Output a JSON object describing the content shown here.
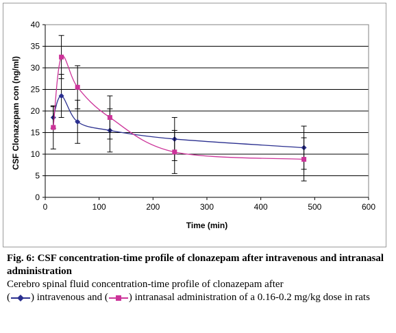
{
  "chart_data": {
    "type": "line",
    "xlabel": "Time (min)",
    "ylabel": "CSF Clonazepam con (ng/ml)",
    "xlim": [
      0,
      600
    ],
    "ylim": [
      0,
      40
    ],
    "xticks": [
      0,
      100,
      200,
      300,
      400,
      500,
      600
    ],
    "yticks": [
      0,
      5,
      10,
      15,
      20,
      25,
      30,
      35,
      40
    ],
    "grid": "horizontal",
    "series": [
      {
        "color": "#2a2f8f",
        "marker": "diamond",
        "x": [
          15,
          30,
          60,
          120,
          240,
          480
        ],
        "y": [
          18.5,
          23.5,
          17.5,
          15.5,
          13.5,
          11.5
        ],
        "err": [
          2.5,
          5,
          5,
          5,
          5,
          5
        ]
      },
      {
        "color": "#cc3399",
        "marker": "square",
        "x": [
          15,
          30,
          60,
          120,
          240,
          480
        ],
        "y": [
          16.2,
          32.5,
          25.5,
          18.5,
          10.5,
          8.8
        ],
        "err": [
          5,
          5,
          5,
          5,
          5,
          5
        ]
      }
    ]
  },
  "caption": {
    "fig_title": "Fig. 6: CSF concentration-time profile of clonazepam after intravenous and intranasal administration",
    "line1": "Cerebro spinal fluid concentration-time profile of clonazepam after",
    "part_iv": ") intravenous and (",
    "part_in": ") intranasal administration of a 0.16-0.2 mg/kg dose in rats",
    "paren_open": "("
  },
  "colors": {
    "iv": "#2a2f8f",
    "in": "#cc3399",
    "plot_bg": "#ffffff",
    "grid": "#000000"
  }
}
